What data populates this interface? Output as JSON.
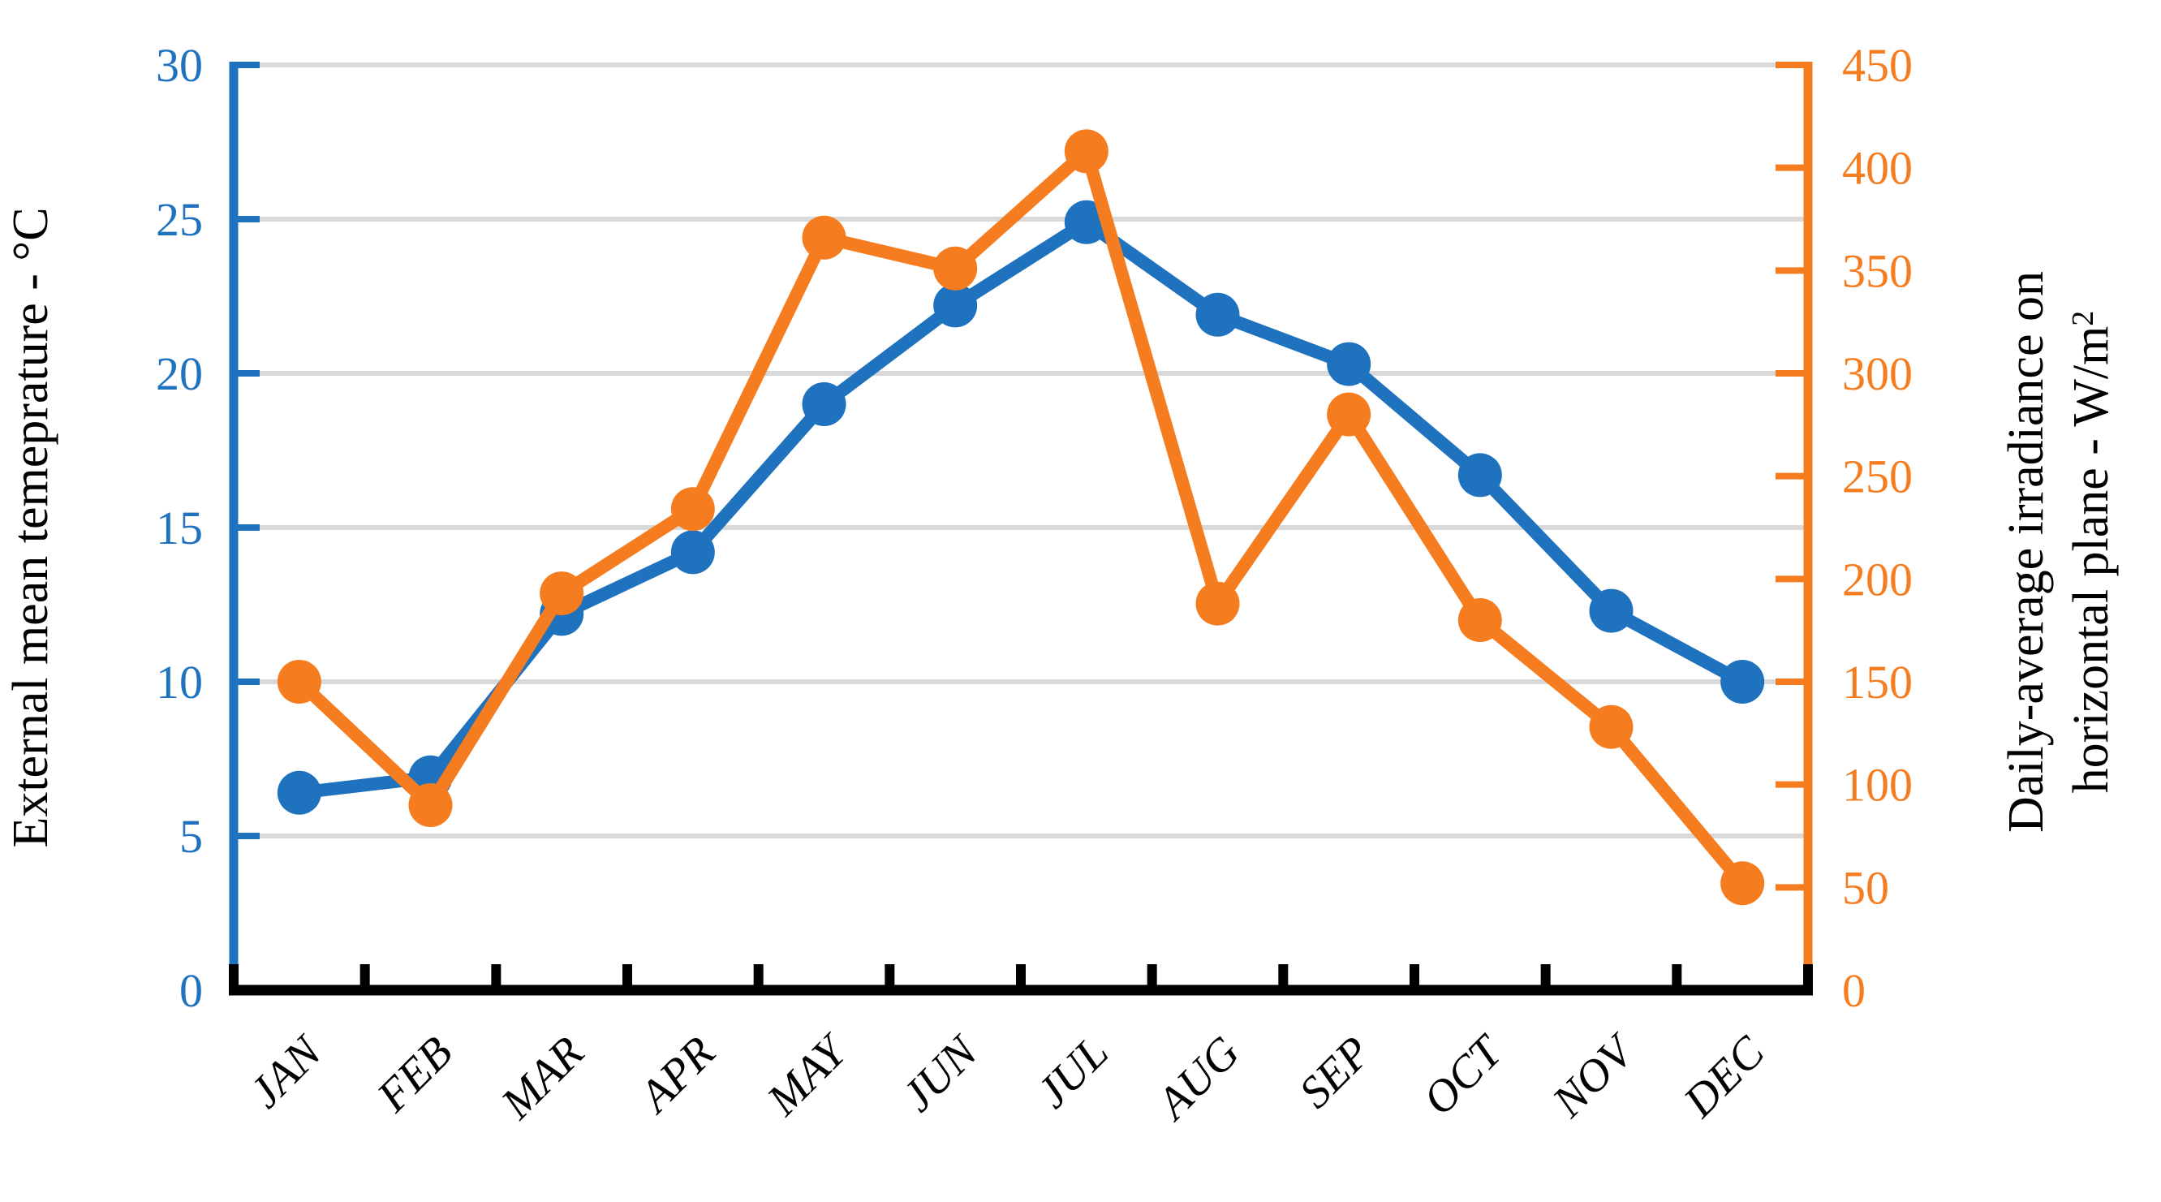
{
  "chart_data": {
    "type": "line",
    "title": "",
    "categories": [
      "JAN",
      "FEB",
      "MAR",
      "APR",
      "MAY",
      "JUN",
      "JUL",
      "AUG",
      "SEP",
      "OCT",
      "NOV",
      "DEC"
    ],
    "series": [
      {
        "name": "External mean temperature",
        "axis": "left",
        "color": "#1F72BD",
        "marker": "circle",
        "values": [
          6.4,
          6.9,
          12.2,
          14.2,
          19.0,
          22.2,
          24.9,
          21.9,
          20.3,
          16.7,
          12.3,
          10.0
        ]
      },
      {
        "name": "Daily-average irradiance on horizontal plane",
        "axis": "right",
        "color": "#F57D20",
        "marker": "circle",
        "values": [
          150,
          90,
          193,
          234,
          366,
          351,
          408,
          188,
          280,
          180,
          128,
          52
        ]
      }
    ],
    "left_axis": {
      "title": "External mean temeprature - °C",
      "min": 0,
      "max": 30,
      "step": 5,
      "ticks": [
        0,
        5,
        10,
        15,
        20,
        25,
        30
      ],
      "color": "#1F72BD"
    },
    "right_axis": {
      "title_line1": "Daily-average irradiance on",
      "title_line2": "horizontal plane - W/m",
      "title_superscript": "2",
      "min": 0,
      "max": 450,
      "step": 50,
      "ticks": [
        0,
        50,
        100,
        150,
        200,
        250,
        300,
        350,
        400,
        450
      ],
      "color": "#F57D20"
    },
    "x_axis": {
      "color": "#000000",
      "label_rotation_deg": -45
    },
    "grid": {
      "show": true,
      "color": "#D9D9D9"
    },
    "legend": "none",
    "background_color": "#FFFFFF"
  }
}
